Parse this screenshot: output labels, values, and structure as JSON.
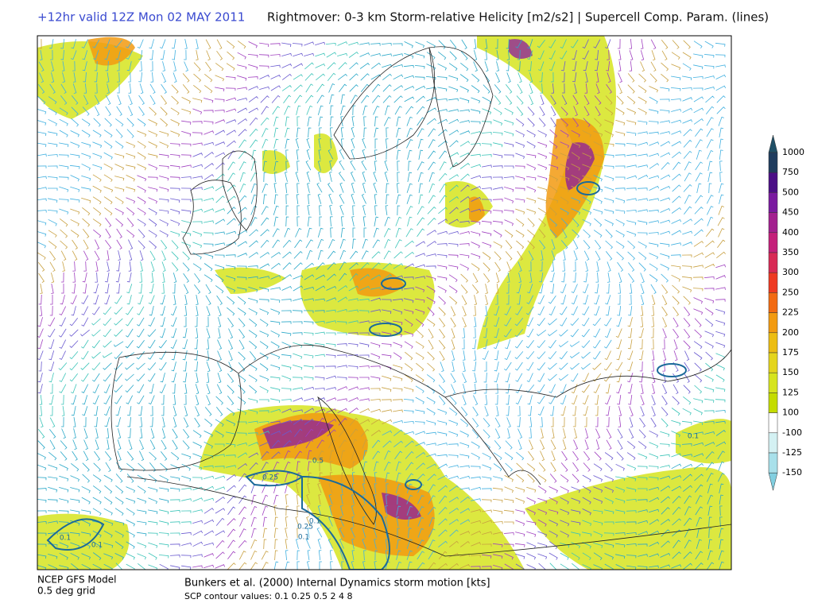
{
  "header": {
    "valid_time": "+12hr valid 12Z Mon 02 MAY 2011",
    "title": "Rightmover: 0-3 km Storm-relative Helicity [m2/s2] | Supercell Comp. Param. (lines)"
  },
  "footer": {
    "model": "NCEP GFS Model",
    "grid": "0.5 deg grid",
    "storm_motion": "Bunkers et al. (2000) Internal Dynamics storm motion [kts]",
    "scp_contours": "SCP contour values: 0.1 0.25 0.5   2 4 8"
  },
  "colorbar": {
    "labels": [
      1000,
      750,
      500,
      450,
      400,
      350,
      300,
      250,
      225,
      200,
      175,
      150,
      125,
      100,
      -100,
      -125,
      -150
    ],
    "colors": [
      "#1f4f66",
      "#1f3c5e",
      "#4b0f86",
      "#7a1aa0",
      "#a3208f",
      "#c4207a",
      "#d82a55",
      "#ee3a22",
      "#f26a12",
      "#f29a10",
      "#ecbd12",
      "#e4d51c",
      "#d6e41e",
      "#c4dc00",
      "#ffffff",
      "#d4f1f3",
      "#a8e0ea",
      "#82cfe0"
    ]
  },
  "map": {
    "contour_labels": [
      "0.1",
      "0.1",
      "0.25",
      "0.5",
      "0.1",
      "0.25",
      "0.1",
      "0.1"
    ]
  }
}
